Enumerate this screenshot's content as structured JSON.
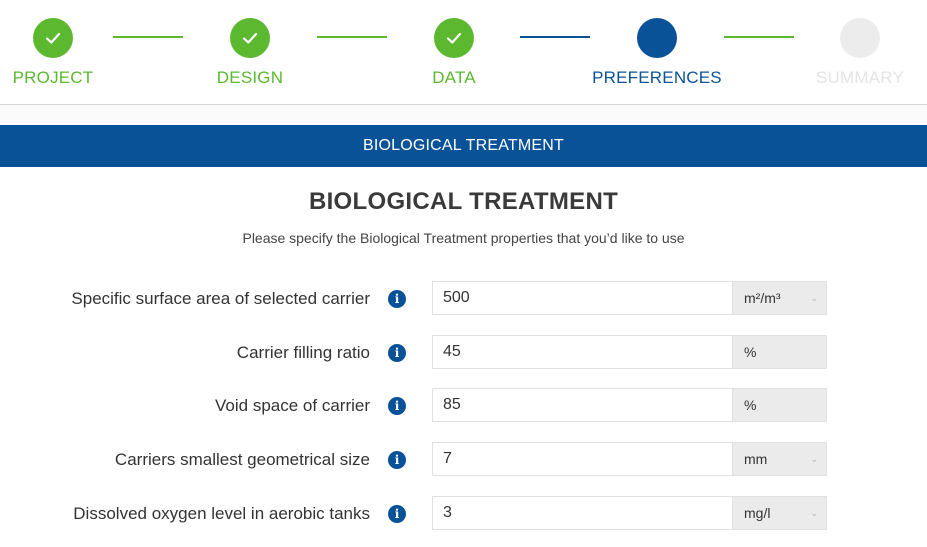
{
  "colors": {
    "complete": "#5cb82f",
    "active": "#0a5297",
    "inactive": "#ececec",
    "banner": "#0a5297",
    "info_icon": "#0a5297"
  },
  "stepper": {
    "steps": [
      {
        "label": "PROJECT",
        "state": "complete",
        "icon": "check-icon"
      },
      {
        "label": "DESIGN",
        "state": "complete",
        "icon": "check-icon"
      },
      {
        "label": "DATA",
        "state": "complete",
        "icon": "check-icon"
      },
      {
        "label": "PREFERENCES",
        "state": "active",
        "icon": ""
      },
      {
        "label": "SUMMARY",
        "state": "inactive",
        "icon": ""
      }
    ]
  },
  "banner": {
    "title": "BIOLOGICAL TREATMENT"
  },
  "section": {
    "title": "BIOLOGICAL TREATMENT",
    "subtitle": "Please specify the Biological Treatment properties that you’d like to use"
  },
  "fields": [
    {
      "label": "Specific surface area of selected carrier",
      "value": "500",
      "unit": "m²/m³",
      "has_dropdown": true,
      "info_icon": "info-icon"
    },
    {
      "label": "Carrier filling ratio",
      "value": "45",
      "unit": "%",
      "has_dropdown": false,
      "info_icon": "info-icon"
    },
    {
      "label": "Void space of carrier",
      "value": "85",
      "unit": "%",
      "has_dropdown": false,
      "info_icon": "info-icon"
    },
    {
      "label": "Carriers smallest geometrical size",
      "value": "7",
      "unit": "mm",
      "has_dropdown": true,
      "info_icon": "info-icon"
    },
    {
      "label": "Dissolved oxygen level in aerobic tanks",
      "value": "3",
      "unit": "mg/l",
      "has_dropdown": true,
      "info_icon": "info-icon"
    }
  ]
}
